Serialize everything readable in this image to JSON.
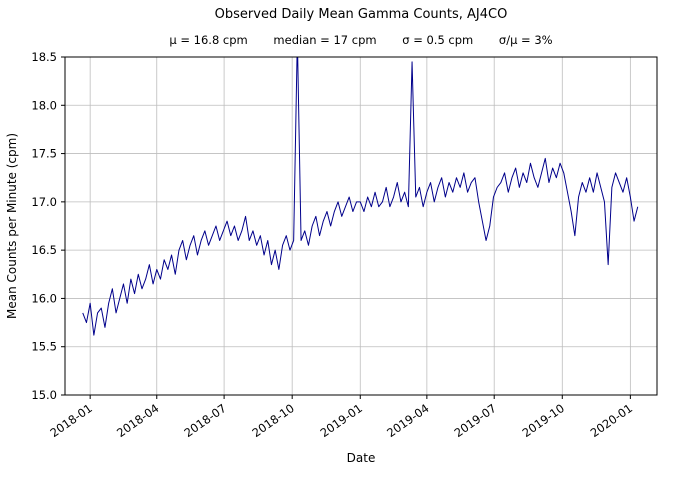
{
  "chart_data": {
    "type": "line",
    "title": "Observed Daily Mean Gamma Counts, AJ4CO",
    "subtitle_parts": [
      "μ = 16.8 cpm",
      "median = 17 cpm",
      "σ = 0.5 cpm",
      "σ/μ = 3%"
    ],
    "stats": {
      "mu": "16.8 cpm",
      "median": "17 cpm",
      "sigma": "0.5 cpm",
      "sigma_over_mu": "3%"
    },
    "xlabel": "Date",
    "ylabel": "Mean Counts per Minute (cpm)",
    "ylim": [
      15.0,
      18.5
    ],
    "yticks": [
      15.0,
      15.5,
      16.0,
      16.5,
      17.0,
      17.5,
      18.0,
      18.5
    ],
    "xlim_days": [
      -34,
      766
    ],
    "x_epoch": "days since 2018-01-01",
    "xticks": [
      {
        "day": 0,
        "label": "2018-01"
      },
      {
        "day": 90,
        "label": "2018-04"
      },
      {
        "day": 181,
        "label": "2018-07"
      },
      {
        "day": 273,
        "label": "2018-10"
      },
      {
        "day": 365,
        "label": "2019-01"
      },
      {
        "day": 455,
        "label": "2019-04"
      },
      {
        "day": 546,
        "label": "2019-07"
      },
      {
        "day": 638,
        "label": "2019-10"
      },
      {
        "day": 730,
        "label": "2020-01"
      }
    ],
    "grid": true,
    "legend": "none",
    "line_color": "#00008b",
    "grid_color": "#bdbdbd",
    "series": [
      {
        "name": "observed daily mean gamma counts",
        "x_days": [
          -10,
          -5,
          0,
          5,
          10,
          15,
          20,
          25,
          30,
          35,
          40,
          45,
          50,
          55,
          60,
          65,
          70,
          75,
          80,
          85,
          90,
          95,
          100,
          105,
          110,
          115,
          120,
          125,
          130,
          135,
          140,
          145,
          150,
          155,
          160,
          165,
          170,
          175,
          180,
          185,
          190,
          195,
          200,
          205,
          210,
          215,
          220,
          225,
          230,
          235,
          240,
          245,
          250,
          255,
          260,
          265,
          270,
          275,
          280,
          285,
          290,
          295,
          300,
          305,
          310,
          315,
          320,
          325,
          330,
          335,
          340,
          345,
          350,
          355,
          360,
          365,
          370,
          375,
          380,
          385,
          390,
          395,
          400,
          405,
          410,
          415,
          420,
          425,
          430,
          435,
          440,
          445,
          450,
          455,
          460,
          465,
          470,
          475,
          480,
          485,
          490,
          495,
          500,
          505,
          510,
          515,
          520,
          525,
          530,
          535,
          540,
          545,
          550,
          555,
          560,
          565,
          570,
          575,
          580,
          585,
          590,
          595,
          600,
          605,
          610,
          615,
          620,
          625,
          630,
          635,
          640,
          645,
          650,
          655,
          660,
          665,
          670,
          675,
          680,
          685,
          690,
          695,
          700,
          705,
          710,
          715,
          720,
          725,
          730,
          735,
          740
        ],
        "y": [
          15.85,
          15.75,
          15.95,
          15.62,
          15.85,
          15.9,
          15.7,
          15.95,
          16.1,
          15.85,
          16.0,
          16.15,
          15.95,
          16.2,
          16.05,
          16.25,
          16.1,
          16.2,
          16.35,
          16.15,
          16.3,
          16.2,
          16.4,
          16.3,
          16.45,
          16.25,
          16.5,
          16.6,
          16.4,
          16.55,
          16.65,
          16.45,
          16.6,
          16.7,
          16.55,
          16.65,
          16.75,
          16.6,
          16.7,
          16.8,
          16.65,
          16.75,
          16.6,
          16.7,
          16.85,
          16.6,
          16.7,
          16.55,
          16.65,
          16.45,
          16.6,
          16.35,
          16.5,
          16.3,
          16.55,
          16.65,
          16.5,
          16.6,
          18.7,
          16.6,
          16.7,
          16.55,
          16.75,
          16.85,
          16.65,
          16.8,
          16.9,
          16.75,
          16.9,
          17.0,
          16.85,
          16.95,
          17.05,
          16.9,
          17.0,
          17.0,
          16.9,
          17.05,
          16.95,
          17.1,
          16.95,
          17.0,
          17.15,
          16.95,
          17.05,
          17.2,
          17.0,
          17.1,
          16.95,
          18.45,
          17.05,
          17.15,
          16.95,
          17.1,
          17.2,
          17.0,
          17.15,
          17.25,
          17.05,
          17.2,
          17.1,
          17.25,
          17.15,
          17.3,
          17.1,
          17.2,
          17.25,
          17.0,
          16.8,
          16.6,
          16.75,
          17.05,
          17.15,
          17.2,
          17.3,
          17.1,
          17.25,
          17.35,
          17.15,
          17.3,
          17.2,
          17.4,
          17.25,
          17.15,
          17.3,
          17.45,
          17.2,
          17.35,
          17.25,
          17.4,
          17.3,
          17.1,
          16.9,
          16.65,
          17.05,
          17.2,
          17.1,
          17.25,
          17.1,
          17.3,
          17.15,
          17.0,
          16.35,
          17.15,
          17.3,
          17.2,
          17.1,
          17.25,
          17.05,
          16.8,
          16.95
        ]
      }
    ]
  }
}
